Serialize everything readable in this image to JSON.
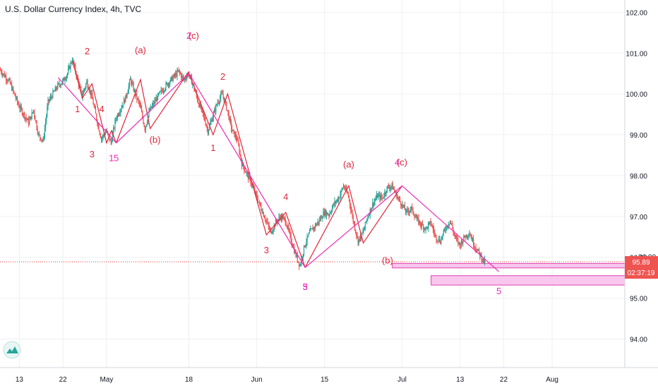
{
  "title": "U.S. Dollar Currency Index, 4h, TVC",
  "colors": {
    "up": "#26a69a",
    "down": "#ef5350",
    "red_wave": "#e0273a",
    "magenta_wave": "#ee2ab8",
    "price_line": "#e03030",
    "zone_fill": "#f9c7ee",
    "zone_stroke": "#e040b0",
    "price_label_bg": "#ef5350",
    "grid": "#eef0f3",
    "axis_text": "#131722"
  },
  "chart_data": {
    "type": "candlestick",
    "symbol": "U.S. Dollar Currency Index",
    "timeframe": "4h",
    "source": "TVC",
    "ylim": [
      93.3,
      102.3
    ],
    "y_ticks": [
      94.0,
      95.0,
      96.0,
      97.0,
      98.0,
      99.0,
      100.0,
      101.0,
      102.0
    ],
    "y_tick_labels": [
      "94.00",
      "95.00",
      "96.00",
      "97.00",
      "98.00",
      "99.00",
      "100.00",
      "101.00",
      "102.00"
    ],
    "x_start": "2020-04-09",
    "x_end": "2020-08-16",
    "x_ticks": [
      {
        "date": "2020-04-13",
        "label": "13"
      },
      {
        "date": "2020-04-22",
        "label": "22"
      },
      {
        "date": "2020-05-01",
        "label": "May"
      },
      {
        "date": "2020-05-18",
        "label": "18"
      },
      {
        "date": "2020-06-01",
        "label": "Jun"
      },
      {
        "date": "2020-06-15",
        "label": "15"
      },
      {
        "date": "2020-07-01",
        "label": "Jul"
      },
      {
        "date": "2020-07-13",
        "label": "13"
      },
      {
        "date": "2020-07-22",
        "label": "22"
      },
      {
        "date": "2020-08-01",
        "label": "Aug"
      }
    ],
    "last_price": 95.89,
    "last_price_label": "95.89",
    "bar_countdown": "02:37:19",
    "partial_price_label": "96.00",
    "price_path": [
      [
        "2020-04-09",
        100.6
      ],
      [
        "2020-04-11",
        100.3
      ],
      [
        "2020-04-13",
        99.7
      ],
      [
        "2020-04-15",
        99.3
      ],
      [
        "2020-04-16",
        99.6
      ],
      [
        "2020-04-17",
        99.0
      ],
      [
        "2020-04-18",
        98.85
      ],
      [
        "2020-04-19",
        99.8
      ],
      [
        "2020-04-21",
        100.2
      ],
      [
        "2020-04-22",
        100.3
      ],
      [
        "2020-04-23",
        100.5
      ],
      [
        "2020-04-24",
        100.85
      ],
      [
        "2020-04-25",
        100.4
      ],
      [
        "2020-04-26",
        99.95
      ],
      [
        "2020-04-27",
        100.3
      ],
      [
        "2020-04-28",
        99.95
      ],
      [
        "2020-04-29",
        99.4
      ],
      [
        "2020-04-30",
        98.9
      ],
      [
        "2020-05-01",
        99.1
      ],
      [
        "2020-05-02",
        98.8
      ],
      [
        "2020-05-03",
        99.4
      ],
      [
        "2020-05-05",
        99.9
      ],
      [
        "2020-05-06",
        100.35
      ],
      [
        "2020-05-07",
        100.0
      ],
      [
        "2020-05-08",
        99.7
      ],
      [
        "2020-05-09",
        99.15
      ],
      [
        "2020-05-10",
        99.6
      ],
      [
        "2020-05-12",
        100.0
      ],
      [
        "2020-05-14",
        100.3
      ],
      [
        "2020-05-16",
        100.55
      ],
      [
        "2020-05-17",
        100.35
      ],
      [
        "2020-05-18",
        100.5
      ],
      [
        "2020-05-19",
        100.2
      ],
      [
        "2020-05-20",
        99.8
      ],
      [
        "2020-05-21",
        99.5
      ],
      [
        "2020-05-22",
        99.1
      ],
      [
        "2020-05-23",
        99.45
      ],
      [
        "2020-05-24",
        99.8
      ],
      [
        "2020-05-25",
        100.0
      ],
      [
        "2020-05-26",
        99.6
      ],
      [
        "2020-05-27",
        99.1
      ],
      [
        "2020-05-28",
        98.9
      ],
      [
        "2020-05-29",
        98.3
      ],
      [
        "2020-05-31",
        97.8
      ],
      [
        "2020-06-02",
        97.2
      ],
      [
        "2020-06-03",
        96.9
      ],
      [
        "2020-06-04",
        96.6
      ],
      [
        "2020-06-05",
        96.85
      ],
      [
        "2020-06-06",
        97.0
      ],
      [
        "2020-06-07",
        96.9
      ],
      [
        "2020-06-08",
        96.5
      ],
      [
        "2020-06-09",
        96.1
      ],
      [
        "2020-06-10",
        95.8
      ],
      [
        "2020-06-11",
        96.3
      ],
      [
        "2020-06-12",
        96.6
      ],
      [
        "2020-06-14",
        96.9
      ],
      [
        "2020-06-15",
        97.1
      ],
      [
        "2020-06-16",
        97.05
      ],
      [
        "2020-06-17",
        97.3
      ],
      [
        "2020-06-18",
        97.45
      ],
      [
        "2020-06-19",
        97.75
      ],
      [
        "2020-06-20",
        97.5
      ],
      [
        "2020-06-21",
        96.9
      ],
      [
        "2020-06-22",
        96.4
      ],
      [
        "2020-06-23",
        96.6
      ],
      [
        "2020-06-24",
        97.0
      ],
      [
        "2020-06-25",
        97.3
      ],
      [
        "2020-06-26",
        97.5
      ],
      [
        "2020-06-27",
        97.45
      ],
      [
        "2020-06-28",
        97.7
      ],
      [
        "2020-06-29",
        97.75
      ],
      [
        "2020-06-30",
        97.5
      ],
      [
        "2020-07-01",
        97.3
      ],
      [
        "2020-07-02",
        97.1
      ],
      [
        "2020-07-03",
        97.2
      ],
      [
        "2020-07-04",
        96.95
      ],
      [
        "2020-07-05",
        96.8
      ],
      [
        "2020-07-06",
        96.7
      ],
      [
        "2020-07-07",
        96.85
      ],
      [
        "2020-07-08",
        96.5
      ],
      [
        "2020-07-09",
        96.4
      ],
      [
        "2020-07-10",
        96.7
      ],
      [
        "2020-07-11",
        96.9
      ],
      [
        "2020-07-12",
        96.5
      ],
      [
        "2020-07-13",
        96.3
      ],
      [
        "2020-07-14",
        96.5
      ],
      [
        "2020-07-15",
        96.6
      ],
      [
        "2020-07-16",
        96.3
      ],
      [
        "2020-07-17",
        96.1
      ],
      [
        "2020-07-18",
        95.9
      ]
    ],
    "red_wave_lines": [
      [
        [
          "2020-04-24",
          100.8
        ],
        [
          "2020-04-26",
          99.9
        ],
        [
          "2020-04-28",
          100.25
        ],
        [
          "2020-05-01",
          98.8
        ],
        [
          "2020-05-02",
          99.1
        ],
        [
          "2020-05-03",
          98.8
        ]
      ],
      [
        [
          "2020-05-03",
          98.8
        ],
        [
          "2020-05-08",
          100.35
        ],
        [
          "2020-05-10",
          99.15
        ],
        [
          "2020-05-18",
          100.55
        ]
      ],
      [
        [
          "2020-05-18",
          100.5
        ],
        [
          "2020-05-23",
          99.0
        ],
        [
          "2020-05-26",
          100.0
        ],
        [
          "2020-06-03",
          96.55
        ],
        [
          "2020-06-07",
          97.1
        ],
        [
          "2020-06-11",
          95.75
        ]
      ],
      [
        [
          "2020-06-11",
          95.75
        ],
        [
          "2020-06-20",
          97.75
        ],
        [
          "2020-06-23",
          96.35
        ],
        [
          "2020-07-01",
          97.75
        ]
      ]
    ],
    "magenta_wave_lines": [
      [
        [
          "2020-04-21",
          100.4
        ],
        [
          "2020-05-03",
          98.8
        ],
        [
          "2020-05-18",
          100.5
        ],
        [
          "2020-06-11",
          95.75
        ],
        [
          "2020-07-01",
          97.75
        ],
        [
          "2020-07-21",
          95.65
        ]
      ]
    ],
    "target_zones": [
      {
        "x_start": "2020-06-29",
        "x_end": "2020-08-16",
        "y_top": 95.85,
        "y_bottom": 95.74
      },
      {
        "x_start": "2020-07-07",
        "x_end": "2020-08-16",
        "y_top": 95.55,
        "y_bottom": 95.32
      }
    ],
    "wave_labels": [
      {
        "text": "2",
        "date": "2020-04-27",
        "y": 100.97,
        "color": "red"
      },
      {
        "text": "1",
        "date": "2020-04-25",
        "y": 99.55,
        "color": "red"
      },
      {
        "text": "4",
        "date": "2020-04-30",
        "y": 99.55,
        "color": "red"
      },
      {
        "text": "3",
        "date": "2020-04-28",
        "y": 98.45,
        "color": "red"
      },
      {
        "text": "5",
        "date": "2020-05-03",
        "y": 98.35,
        "color": "magenta"
      },
      {
        "text": "1",
        "date": "2020-05-02",
        "y": 98.35,
        "color": "magenta"
      },
      {
        "text": "(a)",
        "date": "2020-05-08",
        "y": 101.0,
        "color": "red"
      },
      {
        "text": "(b)",
        "date": "2020-05-11",
        "y": 98.8,
        "color": "red"
      },
      {
        "text": "2",
        "date": "2020-05-18",
        "y": 101.35,
        "color": "magenta"
      },
      {
        "text": "(c)",
        "date": "2020-05-19",
        "y": 101.35,
        "color": "red"
      },
      {
        "text": "2",
        "date": "2020-05-25",
        "y": 100.35,
        "color": "red"
      },
      {
        "text": "1",
        "date": "2020-05-23",
        "y": 98.6,
        "color": "red"
      },
      {
        "text": "4",
        "date": "2020-06-07",
        "y": 97.4,
        "color": "red"
      },
      {
        "text": "3",
        "date": "2020-06-03",
        "y": 96.1,
        "color": "red"
      },
      {
        "text": "3",
        "date": "2020-06-11",
        "y": 95.2,
        "color": "magenta"
      },
      {
        "text": "5",
        "date": "2020-06-11",
        "y": 95.2,
        "color": "magenta"
      },
      {
        "text": "(a)",
        "date": "2020-06-20",
        "y": 98.2,
        "color": "red"
      },
      {
        "text": "(b)",
        "date": "2020-06-28",
        "y": 95.85,
        "color": "red"
      },
      {
        "text": "4",
        "date": "2020-06-30",
        "y": 98.25,
        "color": "magenta"
      },
      {
        "text": "(c)",
        "date": "2020-07-01",
        "y": 98.25,
        "color": "red"
      },
      {
        "text": "5",
        "date": "2020-07-21",
        "y": 95.1,
        "color": "magenta"
      }
    ],
    "grid": true,
    "legend": "none"
  }
}
